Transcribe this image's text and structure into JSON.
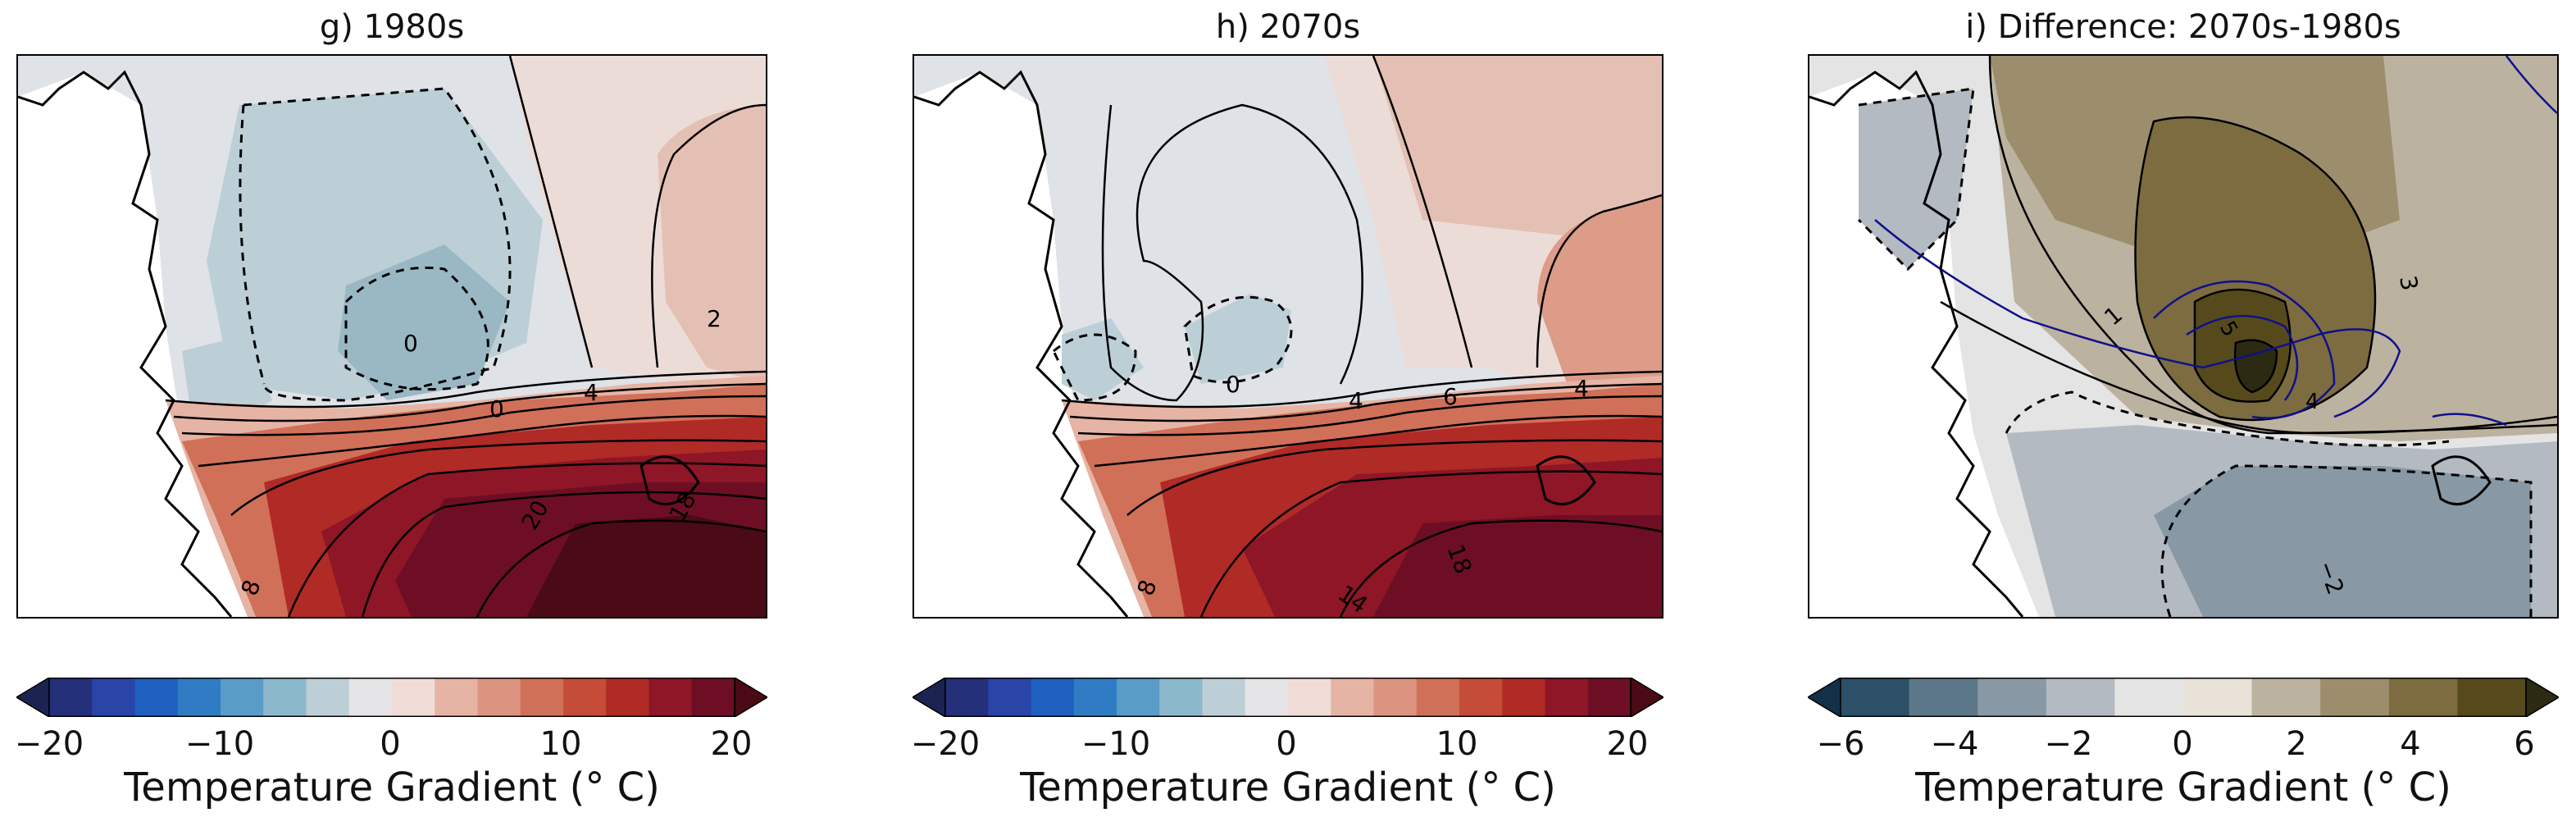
{
  "panels": [
    {
      "title": "g) 1980s",
      "colorbar": {
        "ticks": [
          "−20",
          "−10",
          "0",
          "10",
          "20"
        ],
        "label": "Temperature Gradient (° C)",
        "colors": [
          "#1b2450",
          "#24307a",
          "#2a44a8",
          "#1f5fc0",
          "#2f7cc4",
          "#5a9cc8",
          "#8cb8cc",
          "#bccfd6",
          "#e4e4e6",
          "#f0dcd6",
          "#e6b4a4",
          "#dc9480",
          "#d07058",
          "#c44c38",
          "#b02a26",
          "#8e1626",
          "#6e0e24",
          "#4a0a16"
        ]
      },
      "contour_labels": [
        "2",
        "0",
        "4",
        "0",
        "20",
        "18",
        "8"
      ]
    },
    {
      "title": "h) 2070s",
      "colorbar": {
        "ticks": [
          "−20",
          "−10",
          "0",
          "10",
          "20"
        ],
        "label": "Temperature Gradient (° C)",
        "colors": [
          "#1b2450",
          "#24307a",
          "#2a44a8",
          "#1f5fc0",
          "#2f7cc4",
          "#5a9cc8",
          "#8cb8cc",
          "#bccfd6",
          "#e4e4e6",
          "#f0dcd6",
          "#e6b4a4",
          "#dc9480",
          "#d07058",
          "#c44c38",
          "#b02a26",
          "#8e1626",
          "#6e0e24",
          "#4a0a16"
        ]
      },
      "contour_labels": [
        "0",
        "4",
        "6",
        "4",
        "14",
        "18",
        "8"
      ]
    },
    {
      "title": "i) Difference: 2070s-1980s",
      "colorbar": {
        "ticks": [
          "−6",
          "−4",
          "−2",
          "0",
          "2",
          "4",
          "6"
        ],
        "label": "Temperature Gradient (° C)",
        "colors": [
          "#143048",
          "#2c5068",
          "#5c7888",
          "#8898a4",
          "#b4bac2",
          "#e4e4e4",
          "#e8e2d8",
          "#bcb2a0",
          "#9c8e6c",
          "#7c6c40",
          "#564a1c",
          "#2c2a12"
        ]
      },
      "contour_labels": [
        "1",
        "3",
        "5",
        "4",
        "−2"
      ]
    }
  ]
}
